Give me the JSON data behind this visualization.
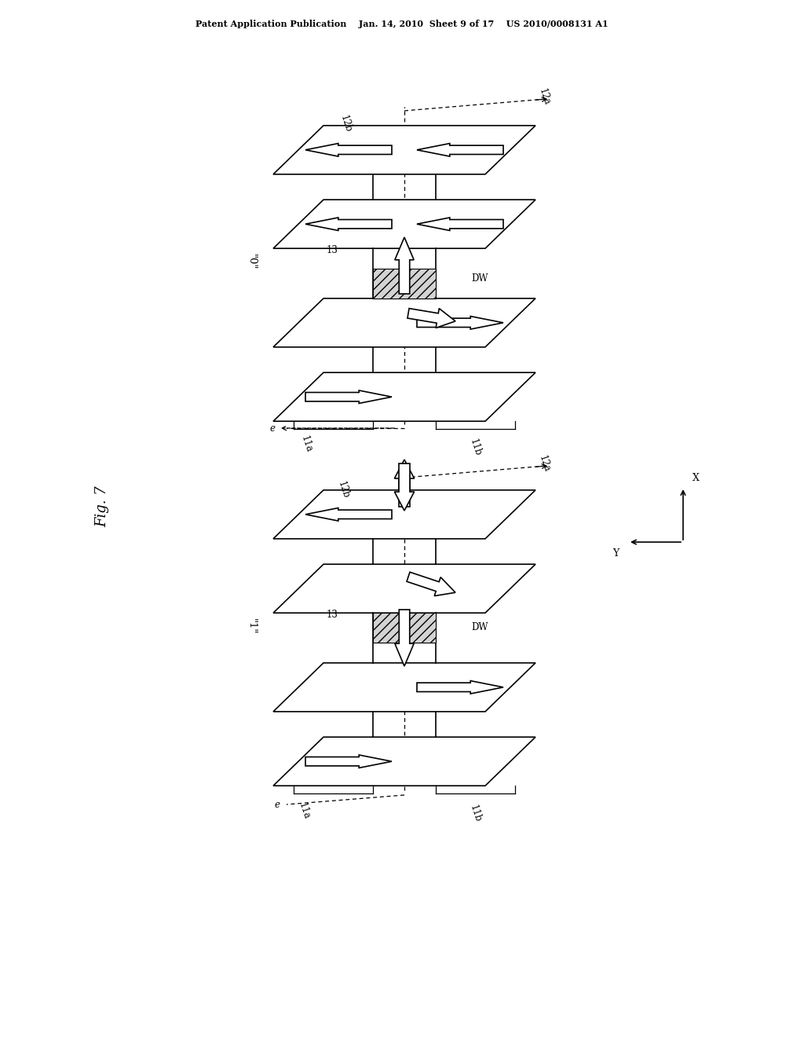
{
  "bg_color": "#ffffff",
  "line_color": "#000000",
  "header_text": "Patent Application Publication    Jan. 14, 2010  Sheet 9 of 17    US 2010/0008131 A1",
  "fig_label": "Fig. 7",
  "title_fontsize": 11,
  "label_fontsize": 9,
  "labels": {
    "top_diagram_label": "\"0\"",
    "bottom_diagram_label": "\"1\"",
    "label_11a": "11a",
    "label_11b": "11b",
    "label_12a_top": "12a",
    "label_12b_top": "12b",
    "label_12a_bot": "12a",
    "label_12b_bot": "12b",
    "label_13_top": "13",
    "label_13_bot": "13",
    "label_DW_top": "DW",
    "label_DW_bot": "DW",
    "label_e_top": "e",
    "label_e_bot": "e",
    "axis_x": "X",
    "axis_y": "Y"
  }
}
